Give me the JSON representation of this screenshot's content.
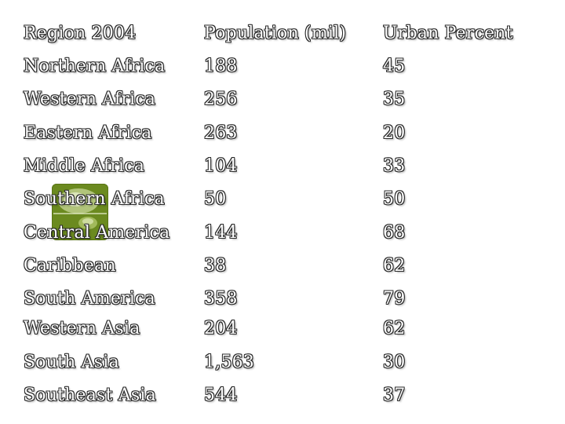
{
  "table": {
    "headers": [
      "Region 2004",
      "Population (mil)",
      "Urban Percent"
    ],
    "rows": [
      [
        "Northern Africa",
        "188",
        "45"
      ],
      [
        "Western Africa",
        "256",
        "35"
      ],
      [
        "Eastern Africa",
        "263",
        "20"
      ],
      [
        "Middle Africa",
        "104",
        "33"
      ],
      [
        "Southern Africa",
        "50",
        "50"
      ],
      [
        "Central America",
        "144",
        "68"
      ],
      [
        "Caribbean",
        "38",
        "62"
      ],
      [
        "South America",
        "358",
        "79"
      ],
      [
        "Western Asia",
        "204",
        "62"
      ],
      [
        "South Asia",
        "1,563",
        "30"
      ],
      [
        "Southeast Asia",
        "544",
        "37"
      ]
    ]
  },
  "logo": {
    "icon": "green-square-logo-icon",
    "color": "#6b8a1f"
  }
}
